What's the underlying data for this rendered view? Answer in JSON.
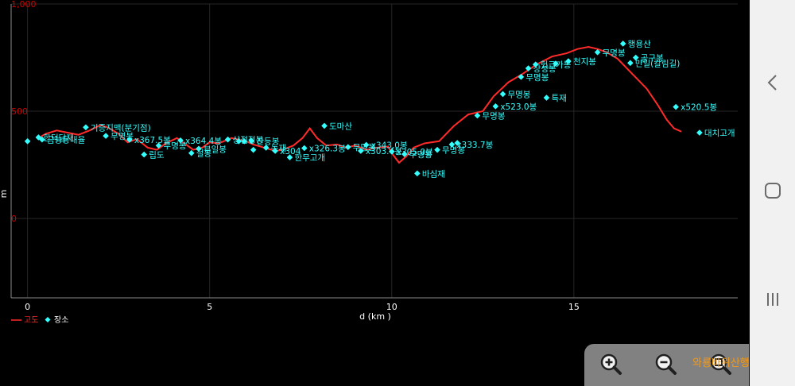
{
  "chart_data": {
    "type": "line",
    "x_unit": "d (km )",
    "y_unit": "m",
    "xlim": [
      -0.45,
      19.5
    ],
    "ylim": [
      -370,
      1000
    ],
    "x_ticks": [
      "0",
      "5",
      "10",
      "15"
    ],
    "x_tick_values": [
      0,
      5,
      10,
      15
    ],
    "y_ticks": [
      "1,000",
      "500",
      "0"
    ],
    "y_tick_values": [
      1000,
      500,
      0
    ],
    "grid": true,
    "legend": {
      "placement": "bottom-left",
      "items": [
        {
          "label": "고도",
          "color": "#ff2a2a",
          "marker": "line"
        },
        {
          "label": "장소",
          "color": "#33ffff",
          "marker": "diamond"
        }
      ]
    },
    "series": [
      {
        "name": "고도",
        "color": "#ff2a2a",
        "points": [
          [
            0.3,
            375
          ],
          [
            0.5,
            395
          ],
          [
            0.8,
            410
          ],
          [
            1.1,
            400
          ],
          [
            1.4,
            390
          ],
          [
            1.7,
            410
          ],
          [
            2.0,
            435
          ],
          [
            2.2,
            425
          ],
          [
            2.5,
            395
          ],
          [
            2.75,
            355
          ],
          [
            3.0,
            370
          ],
          [
            3.3,
            330
          ],
          [
            3.55,
            320
          ],
          [
            3.8,
            350
          ],
          [
            4.1,
            375
          ],
          [
            4.35,
            345
          ],
          [
            4.55,
            320
          ],
          [
            4.8,
            330
          ],
          [
            5.0,
            355
          ],
          [
            5.25,
            350
          ],
          [
            5.6,
            375
          ],
          [
            6.0,
            360
          ],
          [
            6.2,
            345
          ],
          [
            6.5,
            330
          ],
          [
            6.8,
            315
          ],
          [
            7.0,
            320
          ],
          [
            7.3,
            340
          ],
          [
            7.55,
            375
          ],
          [
            7.75,
            420
          ],
          [
            7.95,
            375
          ],
          [
            8.2,
            340
          ],
          [
            8.5,
            345
          ],
          [
            8.75,
            330
          ],
          [
            9.0,
            340
          ],
          [
            9.3,
            320
          ],
          [
            9.6,
            330
          ],
          [
            9.9,
            335
          ],
          [
            10.0,
            305
          ],
          [
            10.2,
            260
          ],
          [
            10.4,
            290
          ],
          [
            10.6,
            330
          ],
          [
            10.9,
            350
          ],
          [
            11.3,
            360
          ],
          [
            11.7,
            430
          ],
          [
            12.1,
            485
          ],
          [
            12.5,
            500
          ],
          [
            12.8,
            570
          ],
          [
            13.2,
            635
          ],
          [
            13.6,
            675
          ],
          [
            14.0,
            720
          ],
          [
            14.4,
            755
          ],
          [
            14.8,
            770
          ],
          [
            15.1,
            790
          ],
          [
            15.4,
            800
          ],
          [
            15.65,
            790
          ],
          [
            15.9,
            775
          ],
          [
            16.2,
            745
          ],
          [
            16.6,
            675
          ],
          [
            17.0,
            605
          ],
          [
            17.3,
            530
          ],
          [
            17.55,
            460
          ],
          [
            17.75,
            420
          ],
          [
            17.95,
            405
          ]
        ]
      },
      {
        "name": "장소",
        "color": "#33ffff",
        "points": [
          {
            "x": 0.0,
            "y": 360,
            "label": ""
          },
          {
            "x": 0.3,
            "y": 378,
            "label": "한덕담재"
          },
          {
            "x": 0.4,
            "y": 368,
            "label": "금능동내율"
          },
          {
            "x": 1.6,
            "y": 425,
            "label": "기증지맥(분기점)"
          },
          {
            "x": 2.15,
            "y": 385,
            "label": "무명봉"
          },
          {
            "x": 2.8,
            "y": 367,
            "label": "x367.5봉"
          },
          {
            "x": 3.2,
            "y": 298,
            "label": "립도"
          },
          {
            "x": 3.6,
            "y": 340,
            "label": "무명봉"
          },
          {
            "x": 4.2,
            "y": 364,
            "label": "x364.4봉"
          },
          {
            "x": 4.5,
            "y": 305,
            "label": "절봉"
          },
          {
            "x": 4.7,
            "y": 325,
            "label": "부일봉"
          },
          {
            "x": 5.5,
            "y": 368,
            "label": "상점정봉"
          },
          {
            "x": 5.8,
            "y": 360,
            "label": ""
          },
          {
            "x": 5.95,
            "y": 360,
            "label": ""
          },
          {
            "x": 6.15,
            "y": 362,
            "label": "잔등봉"
          },
          {
            "x": 6.2,
            "y": 320,
            "label": ""
          },
          {
            "x": 6.55,
            "y": 330,
            "label": "농재"
          },
          {
            "x": 6.8,
            "y": 315,
            "label": "x304"
          },
          {
            "x": 7.2,
            "y": 285,
            "label": "한무고개"
          },
          {
            "x": 7.6,
            "y": 328,
            "label": "x326.3봉"
          },
          {
            "x": 8.15,
            "y": 432,
            "label": "도마산"
          },
          {
            "x": 8.8,
            "y": 333,
            "label": "무명봉"
          },
          {
            "x": 9.15,
            "y": 315,
            "label": "x303.4봉"
          },
          {
            "x": 9.3,
            "y": 343,
            "label": "x343.0봉"
          },
          {
            "x": 10.0,
            "y": 312,
            "label": "x305.0봉"
          },
          {
            "x": 10.35,
            "y": 300,
            "label": "무명봉"
          },
          {
            "x": 10.7,
            "y": 210,
            "label": "바심재"
          },
          {
            "x": 11.25,
            "y": 320,
            "label": "무명봉"
          },
          {
            "x": 11.65,
            "y": 345,
            "label": "x333.7봉"
          },
          {
            "x": 11.8,
            "y": 352,
            "label": ""
          },
          {
            "x": 12.35,
            "y": 480,
            "label": "무명봉"
          },
          {
            "x": 12.85,
            "y": 523,
            "label": "x523.0봉"
          },
          {
            "x": 13.05,
            "y": 580,
            "label": "무명봉"
          },
          {
            "x": 13.55,
            "y": 660,
            "label": "무명봉"
          },
          {
            "x": 13.75,
            "y": 700,
            "label": "장성봉"
          },
          {
            "x": 13.95,
            "y": 718,
            "label": "헝크가봉"
          },
          {
            "x": 14.25,
            "y": 563,
            "label": "특재"
          },
          {
            "x": 14.5,
            "y": 722,
            "label": ""
          },
          {
            "x": 14.85,
            "y": 733,
            "label": "천지봉"
          },
          {
            "x": 15.65,
            "y": 775,
            "label": "무명봉"
          },
          {
            "x": 16.35,
            "y": 815,
            "label": "행용산"
          },
          {
            "x": 16.55,
            "y": 725,
            "label": "만일(칼림길)"
          },
          {
            "x": 16.7,
            "y": 750,
            "label": "공구봉"
          },
          {
            "x": 17.8,
            "y": 520,
            "label": "x520.5봉"
          },
          {
            "x": 18.45,
            "y": 400,
            "label": "대치고개"
          }
        ]
      }
    ]
  },
  "ui": {
    "nav_back_icon": "chevron-left-icon",
    "nav_home_icon": "square-icon",
    "nav_recents_icon": "bars-icon",
    "zoom_in_icon": "zoom-in-icon",
    "zoom_out_icon": "zoom-out-icon",
    "zoom_reset_icon": "zoom-reset-icon",
    "watermark": "와룡바위산행이야기"
  },
  "colors": {
    "background": "#000000",
    "grid": "#262626",
    "axis_label": "#ffffff",
    "y_tick": "#cc0000",
    "elevation": "#ff2a2a",
    "place": "#33ffff",
    "watermark": "#f39a1a"
  }
}
